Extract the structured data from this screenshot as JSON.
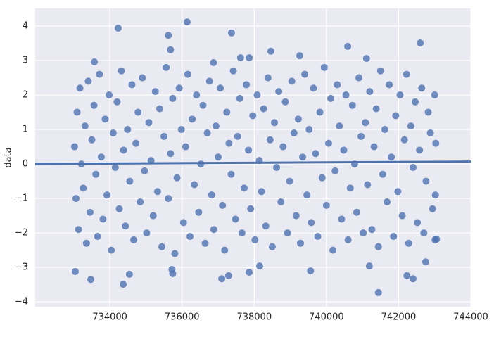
{
  "chart_data": {
    "type": "scatter",
    "ylabel": "data",
    "color": "#4c72b0",
    "grid": true,
    "x": [
      733020,
      733060,
      733090,
      733130,
      733170,
      733210,
      733260,
      733310,
      733350,
      733400,
      733450,
      733500,
      733560,
      733610,
      733660,
      733710,
      733760,
      733810,
      733870,
      733920,
      733980,
      734040,
      734090,
      734150,
      734200,
      734260,
      734320,
      734380,
      734430,
      734490,
      734550,
      734610,
      734660,
      734720,
      734780,
      734840,
      734900,
      734960,
      735020,
      735080,
      735140,
      735200,
      735260,
      735320,
      735380,
      735440,
      735500,
      735560,
      735620,
      735680,
      735740,
      735800,
      735860,
      735920,
      735980,
      736040,
      736100,
      736160,
      736220,
      736280,
      736340,
      736400,
      736460,
      736520,
      736580,
      736640,
      736700,
      736760,
      736820,
      736880,
      736940,
      737000,
      737060,
      737120,
      737180,
      737240,
      737300,
      737360,
      737420,
      737480,
      737540,
      737600,
      737660,
      737720,
      737780,
      737840,
      737900,
      737960,
      738020,
      738080,
      738140,
      738200,
      738260,
      738320,
      738380,
      738440,
      738500,
      738560,
      738620,
      738680,
      738740,
      738800,
      738860,
      738920,
      738980,
      739040,
      739100,
      739160,
      739220,
      739280,
      739340,
      739400,
      739460,
      739520,
      739580,
      739640,
      739700,
      739760,
      739820,
      739880,
      739940,
      740000,
      740060,
      740120,
      740180,
      740240,
      740300,
      740360,
      740420,
      740480,
      740540,
      740600,
      740660,
      740720,
      740780,
      740840,
      740900,
      740960,
      741020,
      741080,
      741140,
      741200,
      741260,
      741320,
      741380,
      741440,
      741500,
      741560,
      741620,
      741680,
      741740,
      741800,
      741860,
      741920,
      741980,
      742040,
      742100,
      742160,
      742220,
      742280,
      742340,
      742400,
      742460,
      742520,
      742580,
      742640,
      742700,
      742760,
      742820,
      742880,
      742940,
      743000,
      743020,
      743030,
      743010,
      734230,
      736140,
      735620,
      735680,
      737370,
      738460,
      737620,
      737860,
      736870,
      733570,
      739260,
      740590,
      742600,
      741110,
      733040,
      733470,
      734370,
      734540,
      735720,
      735740,
      737100,
      737290,
      737860,
      738150,
      739560,
      741190,
      741440,
      742230,
      742400,
      742750,
      743050
    ],
    "values": [
      0.5,
      -1.0,
      1.5,
      -1.9,
      2.2,
      0.0,
      -0.7,
      1.1,
      -2.3,
      2.4,
      -1.4,
      0.7,
      1.7,
      -0.3,
      -2.1,
      2.6,
      0.2,
      -1.6,
      1.3,
      -0.9,
      2.0,
      -2.5,
      0.9,
      -0.1,
      1.8,
      -1.3,
      2.7,
      0.4,
      -1.8,
      1.0,
      -0.5,
      2.3,
      -2.2,
      0.6,
      1.5,
      -1.1,
      2.5,
      -0.2,
      -2.0,
      1.2,
      0.1,
      -1.5,
      2.1,
      -0.8,
      1.6,
      -2.4,
      0.8,
      2.8,
      -1.0,
      0.3,
      1.9,
      -2.6,
      -0.4,
      2.2,
      1.0,
      -1.7,
      0.5,
      2.6,
      -2.1,
      1.3,
      -0.6,
      2.0,
      -1.4,
      0.0,
      1.7,
      -2.3,
      0.9,
      2.4,
      -0.9,
      -1.9,
      1.1,
      0.2,
      2.2,
      -1.2,
      -2.5,
      1.5,
      0.6,
      -0.3,
      2.7,
      -1.6,
      0.8,
      1.9,
      -2.0,
      -0.7,
      2.3,
      0.4,
      -1.3,
      1.4,
      -2.2,
      2.0,
      0.1,
      -0.8,
      1.6,
      -1.8,
      2.5,
      0.7,
      -2.4,
      1.2,
      -0.1,
      2.1,
      -1.1,
      0.5,
      1.8,
      -2.0,
      -0.5,
      2.4,
      0.9,
      -1.5,
      1.3,
      -2.3,
      0.2,
      2.6,
      -0.9,
      1.0,
      -1.7,
      2.2,
      0.3,
      -2.1,
      1.5,
      -0.4,
      2.8,
      -1.2,
      0.6,
      1.9,
      -2.5,
      -0.2,
      2.3,
      1.1,
      -1.6,
      0.4,
      2.0,
      -2.2,
      -0.7,
      1.7,
      0.0,
      -1.4,
      2.5,
      0.8,
      -2.0,
      1.2,
      -0.6,
      2.1,
      -1.9,
      0.5,
      1.6,
      -2.4,
      2.7,
      -0.3,
      1.0,
      -1.1,
      2.3,
      0.2,
      -2.1,
      1.4,
      -0.8,
      2.0,
      -1.5,
      0.7,
      2.6,
      -2.3,
      1.1,
      -0.1,
      1.8,
      -1.7,
      0.4,
      2.2,
      -2.0,
      -0.5,
      1.5,
      0.9,
      -1.3,
      2.0,
      -0.9,
      0.6,
      -2.2,
      3.94,
      4.12,
      3.73,
      3.31,
      3.8,
      3.27,
      3.08,
      3.08,
      2.94,
      2.96,
      3.14,
      3.41,
      3.51,
      3.06,
      -3.12,
      -3.35,
      -3.49,
      -3.2,
      -3.06,
      -3.18,
      -3.33,
      -3.24,
      -3.14,
      -2.96,
      -3.1,
      -2.96,
      -3.73,
      -3.24,
      -3.33,
      -2.84,
      -2.18
    ],
    "regression": {
      "x": [
        731930,
        744000
      ],
      "values": [
        0.0,
        0.07
      ]
    },
    "xlim": [
      731930,
      744000
    ],
    "ylim": [
      -4.14,
      4.51
    ],
    "xticks": [
      734000,
      736000,
      738000,
      740000,
      742000,
      744000
    ],
    "yticks": [
      {
        "value": -4,
        "label": "−4"
      },
      {
        "value": -3,
        "label": "−3"
      },
      {
        "value": -2,
        "label": "−2"
      },
      {
        "value": -1,
        "label": "−1"
      },
      0,
      1,
      2,
      3,
      4
    ]
  }
}
